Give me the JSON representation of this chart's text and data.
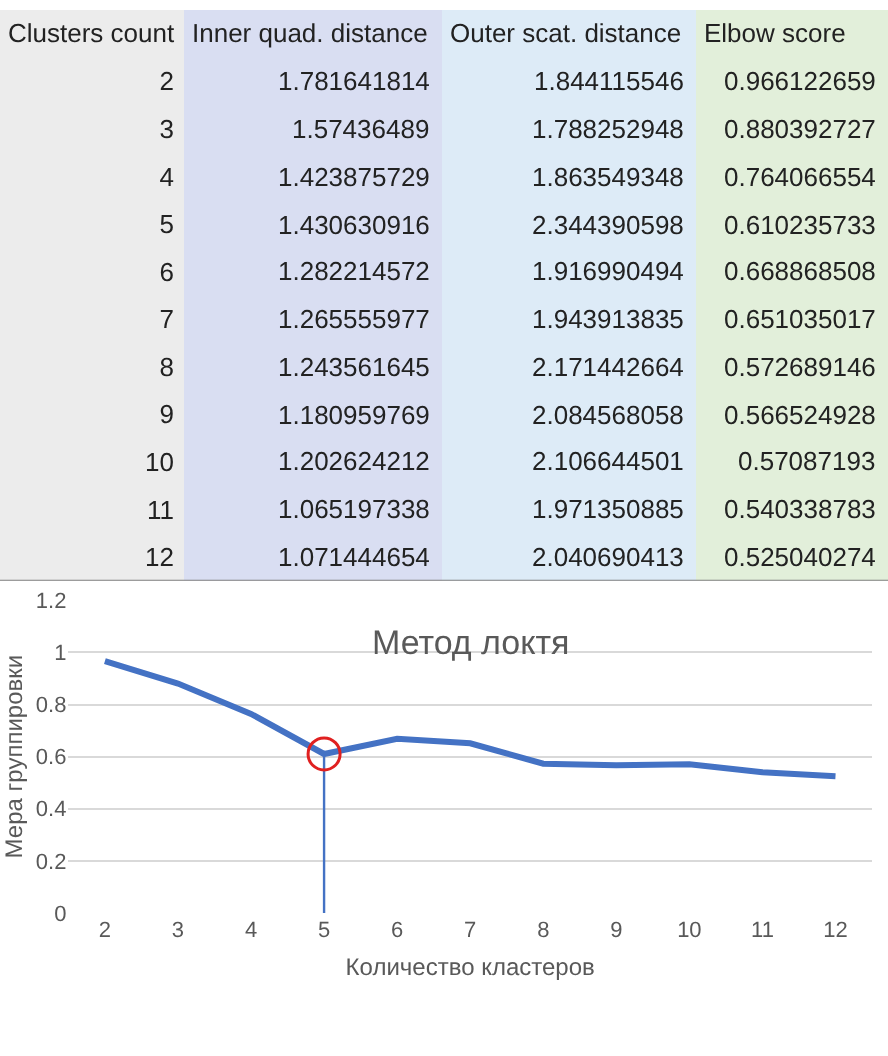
{
  "chart_data": [
    {
      "type": "heatmap",
      "ylabel": "Clusters count",
      "categories": [
        "Inner quad. distance",
        "Outer scat. distance",
        "Elbow score"
      ],
      "colors": [
        "#d9def2",
        "#ddebf7",
        "#e2efda"
      ],
      "y_categories": [
        "2",
        "3",
        "4",
        "5",
        "6",
        "7",
        "8",
        "9",
        "10",
        "11",
        "12"
      ],
      "cells": [
        [
          1.781641814,
          1.844115546,
          0.966122659
        ],
        [
          1.57436489,
          1.788252948,
          0.880392727
        ],
        [
          1.423875729,
          1.863549348,
          0.764066554
        ],
        [
          1.430630916,
          2.344390598,
          0.610235733
        ],
        [
          1.282214572,
          1.916990494,
          0.668868508
        ],
        [
          1.265555977,
          1.943913835,
          0.651035017
        ],
        [
          1.243561645,
          2.171442664,
          0.572689146
        ],
        [
          1.180959769,
          2.084568058,
          0.566524928
        ],
        [
          1.202624212,
          2.106644501,
          0.57087193
        ],
        [
          1.065197338,
          1.971350885,
          0.540338783
        ],
        [
          1.071444654,
          2.040690413,
          0.525040274
        ]
      ],
      "data_labels": true
    },
    {
      "type": "line",
      "title": "Метод локтя",
      "xlabel": "Количество кластеров",
      "ylabel": "Мера группировки",
      "categories": [
        "2",
        "3",
        "4",
        "5",
        "6",
        "7",
        "8",
        "9",
        "10",
        "11",
        "12"
      ],
      "series": [
        {
          "color": "#4472c4",
          "values": [
            0.966122659,
            0.880392727,
            0.764066554,
            0.610235733,
            0.668868508,
            0.651035017,
            0.572689146,
            0.566524928,
            0.57087193,
            0.540338783,
            0.525040274
          ]
        },
        {
          "type": "line",
          "color": "#4472c4",
          "x": [
            "5",
            "5"
          ],
          "values": [
            0,
            0.610235733
          ]
        },
        {
          "type": "scatter",
          "marker": "circle",
          "color": "#e02020",
          "x": [
            "5"
          ],
          "values": [
            0.610235733
          ]
        }
      ],
      "ylim": [
        0,
        1.2
      ],
      "yticks": [
        0,
        0.2,
        0.4,
        0.6,
        0.8,
        1,
        1.2
      ],
      "grid": "y",
      "marker": "none",
      "line_style": "solid"
    }
  ]
}
